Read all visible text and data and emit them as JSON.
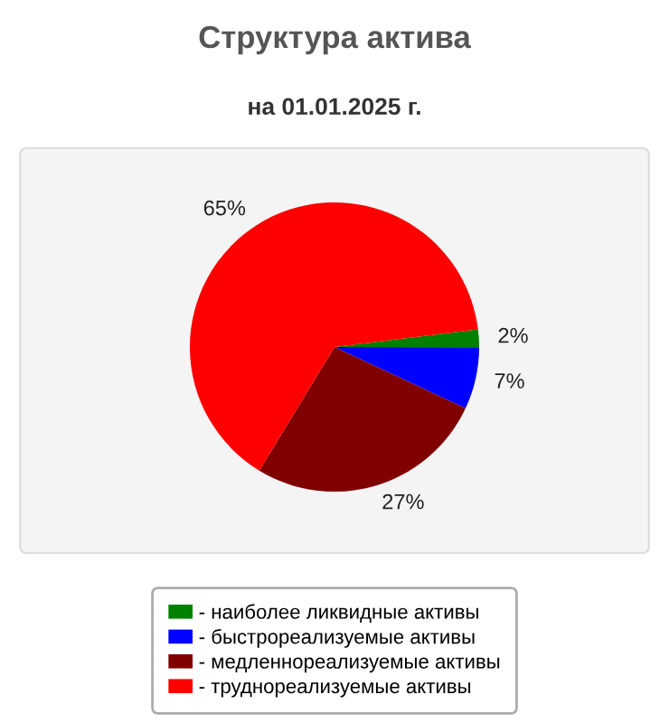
{
  "chart_data": {
    "type": "pie",
    "title": "Структура актива",
    "subtitle": "на 01.01.2025 г.",
    "categories": [
      "- наиболее ликвидные активы",
      "- быстрореализуемые активы",
      "- медленнореализуемые активы",
      "- труднореализуемые активы"
    ],
    "values": [
      2,
      7,
      27,
      65
    ],
    "value_labels": [
      "2%",
      "7%",
      "27%",
      "65%"
    ],
    "colors": [
      "#008000",
      "#0000ff",
      "#800000",
      "#ff0000"
    ],
    "legend": "bottom"
  }
}
